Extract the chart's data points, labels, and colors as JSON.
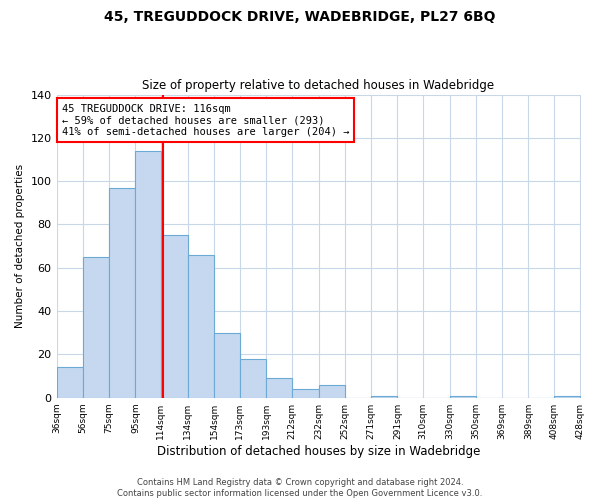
{
  "title": "45, TREGUDDOCK DRIVE, WADEBRIDGE, PL27 6BQ",
  "subtitle": "Size of property relative to detached houses in Wadebridge",
  "xlabel": "Distribution of detached houses by size in Wadebridge",
  "ylabel": "Number of detached properties",
  "bin_edges": [
    36,
    56,
    75,
    95,
    114,
    134,
    154,
    173,
    193,
    212,
    232,
    252,
    271,
    291,
    310,
    330,
    350,
    369,
    389,
    408,
    428
  ],
  "bar_heights": [
    14,
    65,
    97,
    114,
    75,
    66,
    30,
    18,
    9,
    4,
    6,
    0,
    1,
    0,
    0,
    1,
    0,
    0,
    0,
    1
  ],
  "bar_color": "#c5d8f0",
  "bar_edge_color": "#6aaad4",
  "vline_x": 116,
  "vline_color": "red",
  "ylim": [
    0,
    140
  ],
  "yticks": [
    0,
    20,
    40,
    60,
    80,
    100,
    120,
    140
  ],
  "tick_labels": [
    "36sqm",
    "56sqm",
    "75sqm",
    "95sqm",
    "114sqm",
    "134sqm",
    "154sqm",
    "173sqm",
    "193sqm",
    "212sqm",
    "232sqm",
    "252sqm",
    "271sqm",
    "291sqm",
    "310sqm",
    "330sqm",
    "350sqm",
    "369sqm",
    "389sqm",
    "408sqm",
    "428sqm"
  ],
  "annotation_title": "45 TREGUDDOCK DRIVE: 116sqm",
  "annotation_line1": "← 59% of detached houses are smaller (293)",
  "annotation_line2": "41% of semi-detached houses are larger (204) →",
  "annotation_box_edge": "red",
  "footer_line1": "Contains HM Land Registry data © Crown copyright and database right 2024.",
  "footer_line2": "Contains public sector information licensed under the Open Government Licence v3.0.",
  "bg_color": "#ffffff",
  "grid_color": "#c8d8e8"
}
